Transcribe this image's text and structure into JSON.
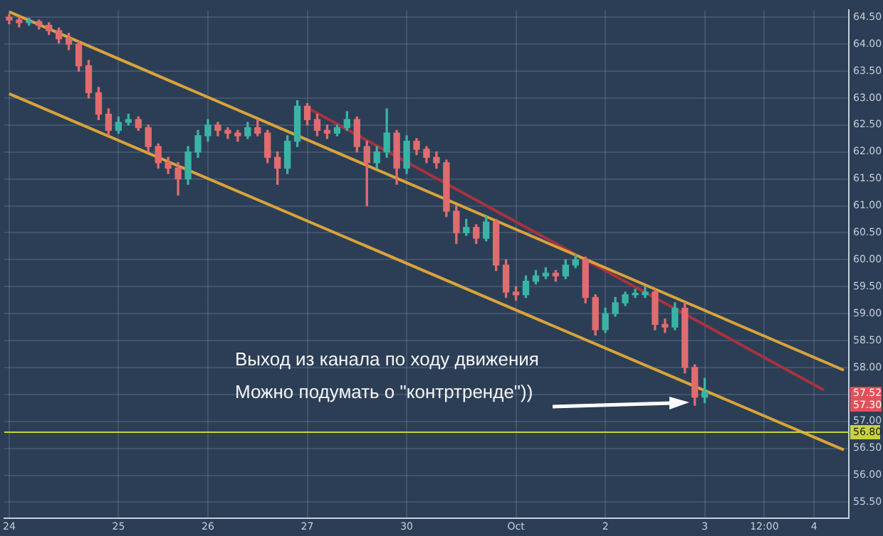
{
  "chart_data": {
    "type": "candlestick",
    "categories": [
      "24",
      null,
      null,
      null,
      null,
      null,
      null,
      null,
      null,
      null,
      null,
      "25",
      null,
      null,
      null,
      null,
      null,
      null,
      null,
      null,
      "26",
      null,
      null,
      null,
      null,
      null,
      null,
      null,
      null,
      null,
      "27",
      null,
      null,
      null,
      null,
      null,
      null,
      null,
      null,
      null,
      "30",
      null,
      null,
      null,
      null,
      null,
      null,
      null,
      null,
      null,
      null,
      "Oct",
      null,
      null,
      null,
      null,
      null,
      null,
      null,
      null,
      "2",
      null,
      null,
      null,
      null,
      null,
      null,
      null,
      null,
      null,
      "3",
      null,
      null,
      null,
      null,
      null,
      "12:00",
      null,
      null,
      null,
      null,
      "4",
      null,
      null,
      null
    ],
    "ohlc": [
      [
        64.5,
        64.55,
        64.38,
        64.45
      ],
      [
        64.45,
        64.5,
        64.32,
        64.4
      ],
      [
        64.4,
        64.48,
        64.35,
        64.42
      ],
      [
        64.42,
        64.45,
        64.28,
        64.35
      ],
      [
        64.35,
        64.4,
        64.18,
        64.25
      ],
      [
        64.25,
        64.3,
        64.02,
        64.1
      ],
      [
        64.1,
        64.2,
        63.9,
        64.0
      ],
      [
        64.0,
        64.05,
        63.5,
        63.6
      ],
      [
        63.6,
        63.7,
        63.0,
        63.1
      ],
      [
        63.1,
        63.2,
        62.6,
        62.7
      ],
      [
        62.7,
        62.8,
        62.3,
        62.4
      ],
      [
        62.4,
        62.65,
        62.35,
        62.55
      ],
      [
        62.55,
        62.7,
        62.5,
        62.6
      ],
      [
        62.6,
        62.65,
        62.4,
        62.45
      ],
      [
        62.45,
        62.5,
        62.0,
        62.1
      ],
      [
        62.1,
        62.15,
        61.7,
        61.8
      ],
      [
        61.8,
        61.9,
        61.6,
        61.7
      ],
      [
        61.7,
        61.8,
        61.2,
        61.5
      ],
      [
        61.5,
        62.1,
        61.4,
        62.0
      ],
      [
        62.0,
        62.4,
        61.9,
        62.3
      ],
      [
        62.3,
        62.6,
        62.2,
        62.5
      ],
      [
        62.5,
        62.55,
        62.3,
        62.4
      ],
      [
        62.4,
        62.45,
        62.25,
        62.35
      ],
      [
        62.35,
        62.4,
        62.2,
        62.3
      ],
      [
        62.3,
        62.55,
        62.25,
        62.45
      ],
      [
        62.45,
        62.6,
        62.3,
        62.35
      ],
      [
        62.35,
        62.4,
        61.8,
        61.9
      ],
      [
        61.9,
        62.0,
        61.4,
        61.7
      ],
      [
        61.7,
        62.3,
        61.6,
        62.2
      ],
      [
        62.2,
        62.95,
        62.1,
        62.85
      ],
      [
        62.85,
        62.9,
        62.5,
        62.6
      ],
      [
        62.6,
        62.7,
        62.3,
        62.4
      ],
      [
        62.4,
        62.5,
        62.25,
        62.35
      ],
      [
        62.35,
        62.5,
        62.3,
        62.45
      ],
      [
        62.45,
        62.75,
        62.4,
        62.6
      ],
      [
        62.6,
        62.65,
        62.0,
        62.1
      ],
      [
        62.1,
        62.2,
        61.0,
        61.8
      ],
      [
        61.8,
        62.1,
        61.7,
        62.0
      ],
      [
        62.0,
        62.8,
        61.9,
        62.35
      ],
      [
        62.35,
        62.4,
        61.4,
        61.7
      ],
      [
        61.7,
        62.3,
        61.6,
        62.2
      ],
      [
        62.2,
        62.25,
        61.95,
        62.05
      ],
      [
        62.05,
        62.1,
        61.8,
        61.9
      ],
      [
        61.9,
        62.0,
        61.7,
        61.8
      ],
      [
        61.8,
        61.85,
        60.8,
        60.9
      ],
      [
        60.9,
        61.0,
        60.3,
        60.5
      ],
      [
        60.5,
        60.75,
        60.45,
        60.6
      ],
      [
        60.6,
        60.65,
        60.3,
        60.4
      ],
      [
        60.4,
        60.8,
        60.35,
        60.7
      ],
      [
        60.7,
        60.75,
        59.8,
        59.9
      ],
      [
        59.9,
        60.0,
        59.3,
        59.4
      ],
      [
        59.4,
        59.5,
        59.25,
        59.35
      ],
      [
        59.35,
        59.7,
        59.3,
        59.6
      ],
      [
        59.6,
        59.8,
        59.55,
        59.7
      ],
      [
        59.7,
        59.85,
        59.65,
        59.75
      ],
      [
        59.75,
        59.8,
        59.6,
        59.7
      ],
      [
        59.7,
        60.0,
        59.65,
        59.9
      ],
      [
        59.9,
        60.1,
        59.85,
        60.0
      ],
      [
        60.0,
        60.05,
        59.2,
        59.3
      ],
      [
        59.3,
        59.35,
        58.6,
        58.7
      ],
      [
        58.7,
        59.1,
        58.65,
        59.0
      ],
      [
        59.0,
        59.3,
        58.95,
        59.2
      ],
      [
        59.2,
        59.4,
        59.15,
        59.35
      ],
      [
        59.35,
        59.45,
        59.3,
        59.35
      ],
      [
        59.35,
        59.5,
        59.3,
        59.4
      ],
      [
        59.4,
        59.45,
        58.7,
        58.8
      ],
      [
        58.8,
        58.9,
        58.65,
        58.75
      ],
      [
        58.75,
        59.2,
        58.7,
        59.1
      ],
      [
        59.1,
        59.2,
        57.9,
        58.0
      ],
      [
        58.0,
        58.05,
        57.3,
        57.45
      ],
      [
        57.45,
        57.8,
        57.35,
        57.55
      ],
      null,
      null,
      null,
      null,
      null,
      null,
      null,
      null,
      null,
      null,
      null,
      null,
      null,
      null
    ],
    "colors": [
      "#e06c6f",
      "#e06c6f",
      "#3bb3a4",
      "#e06c6f",
      "#e06c6f",
      "#e06c6f",
      "#e06c6f",
      "#e06c6f",
      "#e06c6f",
      "#e06c6f",
      "#e06c6f",
      "#3bb3a4",
      "#3bb3a4",
      "#e06c6f",
      "#e06c6f",
      "#e06c6f",
      "#e06c6f",
      "#e06c6f",
      "#3bb3a4",
      "#3bb3a4",
      "#3bb3a4",
      "#e06c6f",
      "#e06c6f",
      "#e06c6f",
      "#3bb3a4",
      "#e06c6f",
      "#e06c6f",
      "#e06c6f",
      "#3bb3a4",
      "#3bb3a4",
      "#e06c6f",
      "#e06c6f",
      "#e06c6f",
      "#3bb3a4",
      "#3bb3a4",
      "#e06c6f",
      "#e06c6f",
      "#3bb3a4",
      "#3bb3a4",
      "#e06c6f",
      "#3bb3a4",
      "#e06c6f",
      "#e06c6f",
      "#e06c6f",
      "#e06c6f",
      "#e06c6f",
      "#3bb3a4",
      "#e06c6f",
      "#3bb3a4",
      "#e06c6f",
      "#e06c6f",
      "#e06c6f",
      "#3bb3a4",
      "#3bb3a4",
      "#3bb3a4",
      "#e06c6f",
      "#3bb3a4",
      "#3bb3a4",
      "#e06c6f",
      "#e06c6f",
      "#3bb3a4",
      "#3bb3a4",
      "#3bb3a4",
      "#3bb3a4",
      "#3bb3a4",
      "#e06c6f",
      "#e06c6f",
      "#3bb3a4",
      "#e06c6f",
      "#e06c6f",
      "#3bb3a4",
      null,
      null,
      null,
      null,
      null,
      null,
      null,
      null,
      null,
      null,
      null,
      null,
      null,
      null
    ],
    "series": [
      {
        "type": "line",
        "values": [
          64.6,
          null,
          null,
          null,
          null,
          null,
          null,
          null,
          null,
          null,
          null,
          null,
          null,
          null,
          null,
          null,
          null,
          null,
          null,
          null,
          null,
          null,
          null,
          null,
          null,
          null,
          null,
          null,
          null,
          null,
          null,
          null,
          null,
          null,
          null,
          null,
          null,
          null,
          null,
          null,
          null,
          null,
          null,
          null,
          null,
          null,
          null,
          null,
          null,
          null,
          null,
          null,
          null,
          null,
          null,
          null,
          null,
          null,
          null,
          null,
          null,
          null,
          null,
          null,
          null,
          null,
          null,
          null,
          null,
          null,
          null,
          null,
          null,
          null,
          null,
          null,
          null,
          null,
          null,
          null,
          null,
          null,
          null,
          null,
          57.95
        ],
        "color": "#d9a43a"
      },
      {
        "type": "line",
        "values": [
          63.08,
          null,
          null,
          null,
          null,
          null,
          null,
          null,
          null,
          null,
          null,
          null,
          null,
          null,
          null,
          null,
          null,
          null,
          null,
          null,
          null,
          null,
          null,
          null,
          null,
          null,
          null,
          null,
          null,
          null,
          null,
          null,
          null,
          null,
          null,
          null,
          null,
          null,
          null,
          null,
          null,
          null,
          null,
          null,
          null,
          null,
          null,
          null,
          null,
          null,
          null,
          null,
          null,
          null,
          null,
          null,
          null,
          null,
          null,
          null,
          null,
          null,
          null,
          null,
          null,
          null,
          null,
          null,
          null,
          null,
          null,
          null,
          null,
          null,
          null,
          null,
          null,
          null,
          null,
          null,
          null,
          null,
          null,
          null,
          56.47
        ],
        "color": "#d9a43a"
      },
      {
        "type": "line",
        "values": [
          null,
          null,
          null,
          null,
          null,
          null,
          null,
          null,
          null,
          null,
          null,
          null,
          null,
          null,
          null,
          null,
          null,
          null,
          null,
          null,
          null,
          null,
          null,
          null,
          null,
          null,
          null,
          null,
          null,
          null,
          62.82,
          null,
          null,
          null,
          null,
          null,
          null,
          null,
          null,
          null,
          null,
          null,
          null,
          null,
          null,
          null,
          null,
          null,
          null,
          null,
          null,
          null,
          null,
          null,
          null,
          null,
          null,
          null,
          null,
          null,
          null,
          null,
          null,
          null,
          null,
          null,
          null,
          null,
          null,
          null,
          null,
          null,
          null,
          null,
          null,
          null,
          null,
          null,
          null,
          null,
          null,
          null,
          57.58,
          null,
          null
        ],
        "color": "#a8323f"
      }
    ],
    "ylim": [
      55.2,
      64.63
    ],
    "yticks": [
      {
        "value": 55.5,
        "label": "55.50"
      },
      {
        "value": 56,
        "label": "56.00"
      },
      {
        "value": 56.5,
        "label": "56.50"
      },
      {
        "value": 57,
        "label": "57.00"
      },
      {
        "value": 57.5,
        "label": null
      },
      {
        "value": 58,
        "label": "58.00"
      },
      {
        "value": 58.5,
        "label": "58.50"
      },
      {
        "value": 59,
        "label": "59.00"
      },
      {
        "value": 59.5,
        "label": "59.50"
      },
      {
        "value": 60,
        "label": "60.00"
      },
      {
        "value": 60.5,
        "label": "60.50"
      },
      {
        "value": 61,
        "label": "61.00"
      },
      {
        "value": 61.5,
        "label": "61.50"
      },
      {
        "value": 62,
        "label": "62.00"
      },
      {
        "value": 62.5,
        "label": "62.50"
      },
      {
        "value": 63,
        "label": "63.00"
      },
      {
        "value": 63.5,
        "label": "63.50"
      },
      {
        "value": 64,
        "label": "64.00"
      },
      {
        "value": 64.5,
        "label": "64.50"
      }
    ],
    "ref_lines": [
      {
        "axis": "y",
        "value": 56.8,
        "label": "56.80",
        "color": "#c8d23c"
      }
    ],
    "annotations": [
      "Выход из канала по ходу движения",
      "Можно подумать о \"контртренде\"))",
      {
        "text": "57.52",
        "y": 57.52
      },
      {
        "text": "57.30",
        "y": 57.3
      }
    ],
    "grid": true,
    "legend": false
  }
}
